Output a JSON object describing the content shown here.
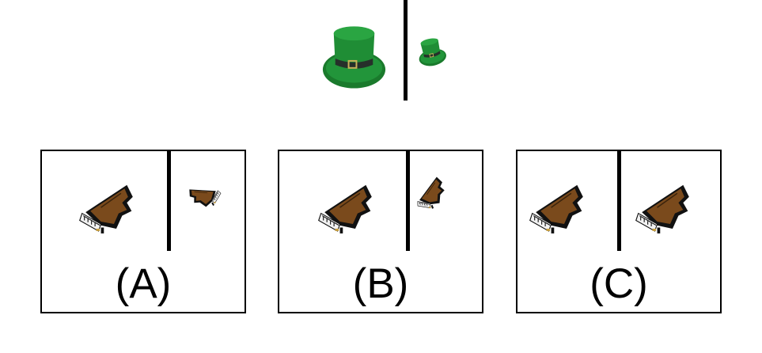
{
  "reference": {
    "large_item": "green-top-hat-icon",
    "small_item": "green-top-hat-icon"
  },
  "options": [
    {
      "label": "(A)",
      "left_item": "grand-piano-icon",
      "right_item": "grand-piano-icon"
    },
    {
      "label": "(B)",
      "left_item": "grand-piano-icon",
      "right_item": "grand-piano-icon"
    },
    {
      "label": "(C)",
      "left_item": "grand-piano-icon",
      "right_item": "grand-piano-icon"
    }
  ],
  "colors": {
    "hat_green": "#1e8a33",
    "hat_dark": "#0f5a1e",
    "piano_brown": "#7a4a1c",
    "piano_black": "#111111"
  }
}
